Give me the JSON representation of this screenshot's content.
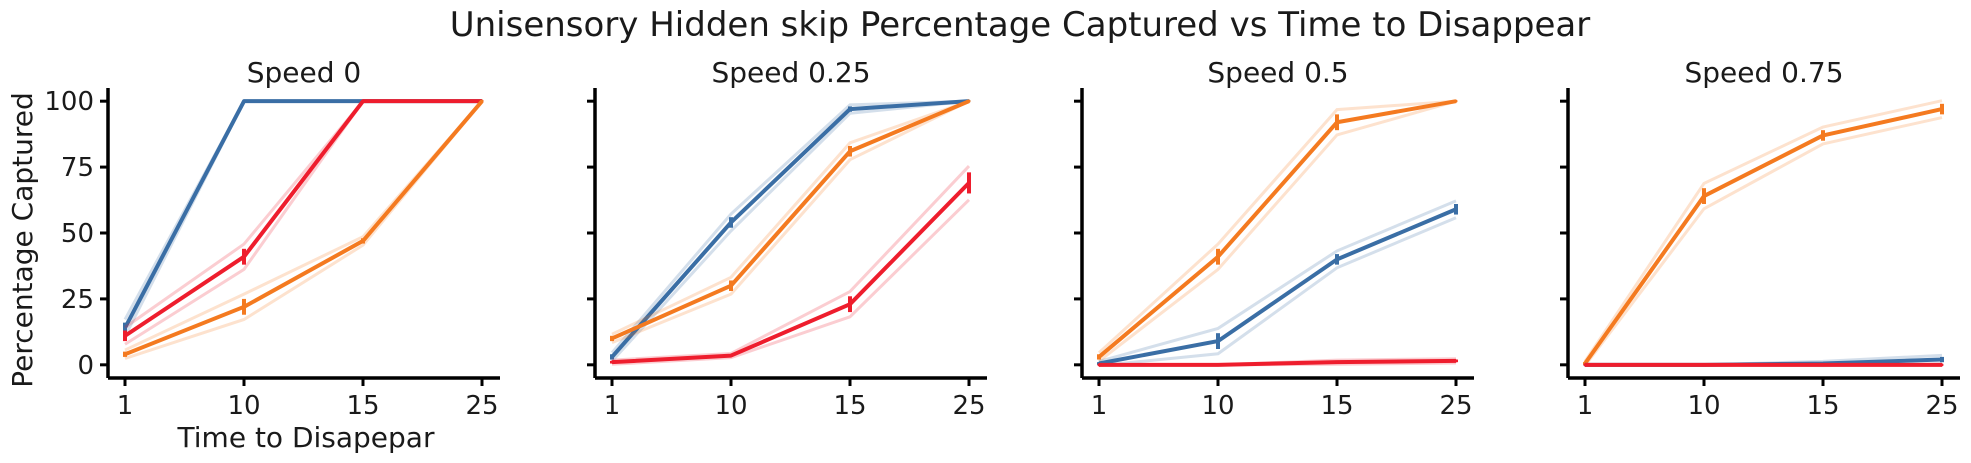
{
  "figure": {
    "title": "Unisensory Hidden skip Percentage Captured vs Time to Disappear",
    "ylabel": "Percentage Captured",
    "xlabel": "Time to Disapepar"
  },
  "colors": {
    "blue": "#3a6ea5",
    "orange": "#f47a20",
    "red": "#ee1d2d"
  },
  "chart_data": [
    {
      "type": "line",
      "title": "Speed 0",
      "xlabel": "Time to Disapepar",
      "ylabel": "Percentage Captured",
      "categories": [
        "1",
        "10",
        "15",
        "25"
      ],
      "ylim": [
        -5,
        105
      ],
      "yticks": [
        0,
        25,
        50,
        75,
        100
      ],
      "grid": false,
      "series": [
        {
          "color": "blue",
          "values": [
            14,
            100,
            100,
            100
          ],
          "errors": [
            2,
            0,
            0,
            0
          ]
        },
        {
          "color": "red",
          "values": [
            11,
            41,
            100,
            100
          ],
          "errors": [
            2,
            3,
            0,
            0
          ]
        },
        {
          "color": "orange",
          "values": [
            4,
            22,
            47,
            100
          ],
          "errors": [
            1,
            3,
            1,
            0
          ]
        }
      ]
    },
    {
      "type": "line",
      "title": "Speed 0.25",
      "xlabel": "",
      "ylabel": "",
      "categories": [
        "1",
        "10",
        "15",
        "25"
      ],
      "ylim": [
        -5,
        105
      ],
      "yticks": [
        0,
        25,
        50,
        75,
        100
      ],
      "grid": false,
      "series": [
        {
          "color": "blue",
          "values": [
            3,
            54,
            97,
            100
          ],
          "errors": [
            1,
            2,
            1,
            0
          ]
        },
        {
          "color": "orange",
          "values": [
            10,
            30,
            81,
            100
          ],
          "errors": [
            1,
            2,
            2,
            0
          ]
        },
        {
          "color": "red",
          "values": [
            1,
            3.5,
            23,
            69
          ],
          "errors": [
            0.5,
            0.5,
            3,
            4
          ]
        }
      ]
    },
    {
      "type": "line",
      "title": "Speed 0.5",
      "xlabel": "",
      "ylabel": "",
      "categories": [
        "1",
        "10",
        "15",
        "25"
      ],
      "ylim": [
        -5,
        105
      ],
      "yticks": [
        0,
        25,
        50,
        75,
        100
      ],
      "grid": false,
      "series": [
        {
          "color": "orange",
          "values": [
            3,
            41,
            92,
            100
          ],
          "errors": [
            1,
            3,
            3,
            0
          ]
        },
        {
          "color": "blue",
          "values": [
            0.5,
            9,
            40,
            59
          ],
          "errors": [
            0.5,
            3,
            2,
            2
          ]
        },
        {
          "color": "red",
          "values": [
            0,
            0,
            1,
            1.5
          ],
          "errors": [
            0,
            0,
            0.5,
            0.5
          ]
        }
      ]
    },
    {
      "type": "line",
      "title": "Speed 0.75",
      "xlabel": "",
      "ylabel": "",
      "categories": [
        "1",
        "10",
        "15",
        "25"
      ],
      "ylim": [
        -5,
        105
      ],
      "yticks": [
        0,
        25,
        50,
        75,
        100
      ],
      "grid": false,
      "series": [
        {
          "color": "orange",
          "values": [
            0.5,
            64,
            87,
            97
          ],
          "errors": [
            0.5,
            3,
            2,
            2
          ]
        },
        {
          "color": "blue",
          "values": [
            0,
            0,
            0.5,
            2
          ],
          "errors": [
            0,
            0,
            0.5,
            1
          ]
        },
        {
          "color": "red",
          "values": [
            0,
            0,
            0,
            0
          ],
          "errors": [
            0,
            0,
            0,
            0
          ]
        }
      ]
    }
  ]
}
